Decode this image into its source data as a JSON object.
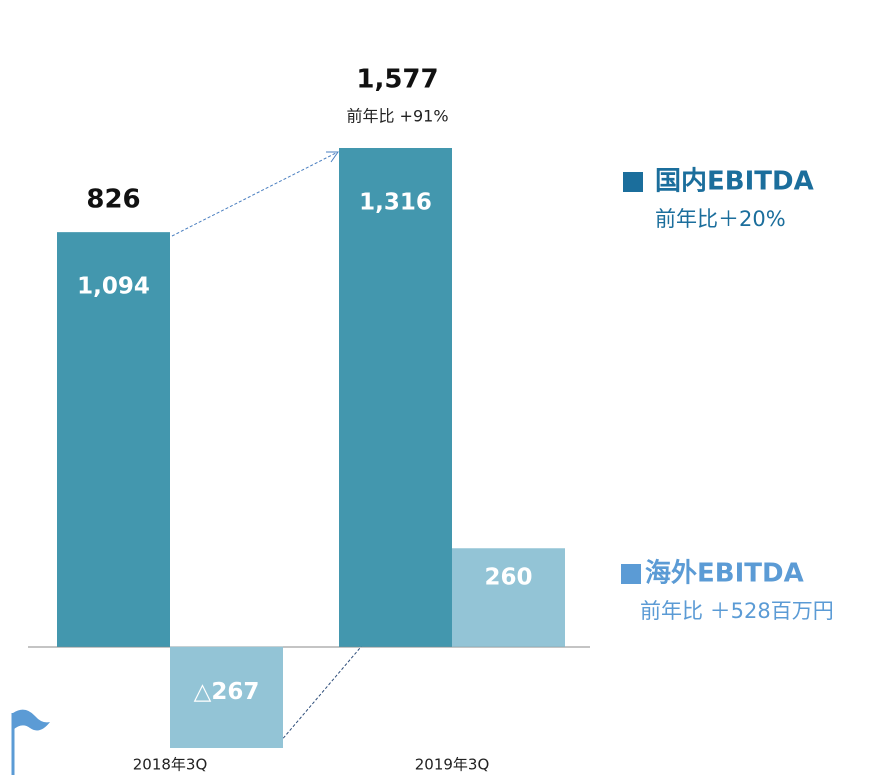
{
  "chart_data": {
    "type": "bar",
    "categories": [
      "2018年3Q",
      "2019年3Q"
    ],
    "series": [
      {
        "name": "国内EBITDA",
        "color": "#4397ae",
        "legend_color": "#1b6e9c",
        "growth": "前年比＋20%",
        "values": [
          1094,
          1316
        ],
        "value_labels": [
          "1,094",
          "1,316"
        ]
      },
      {
        "name": "海外EBITDA",
        "color": "#93c4d6",
        "legend_color": "#5b9bd5",
        "growth": "前年比 ＋528百万円",
        "values": [
          -267,
          260
        ],
        "value_labels": [
          "△267",
          "260"
        ]
      }
    ],
    "totals": [
      826,
      1577
    ],
    "total_labels": [
      "826",
      "1,577"
    ],
    "total_growth": "前年比 +91%"
  }
}
